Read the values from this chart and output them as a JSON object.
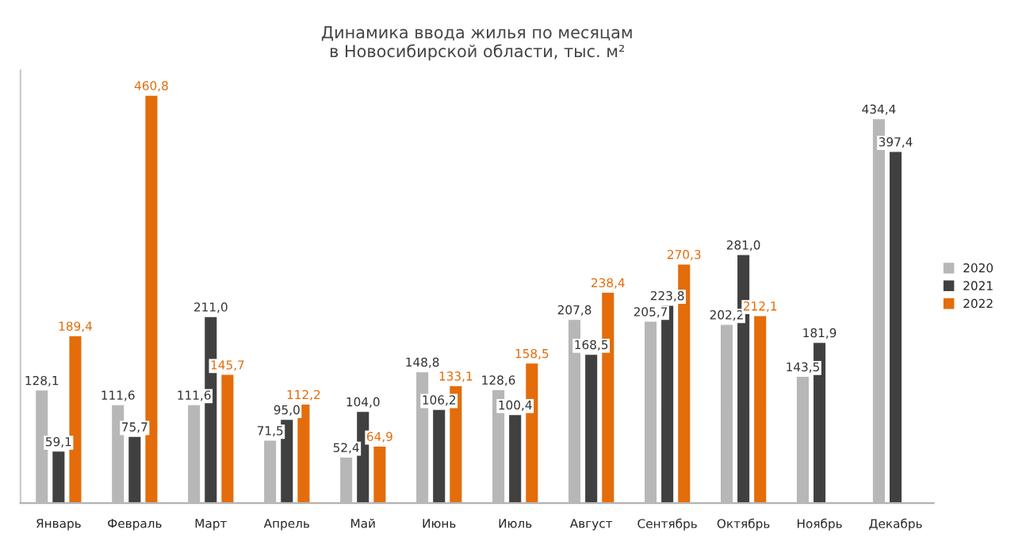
{
  "chart_data": {
    "type": "bar",
    "title": "Динамика ввода жилья по месяцам\nв Новосибирской области, тыс. м²",
    "categories": [
      "Январь",
      "Февраль",
      "Март",
      "Апрель",
      "Май",
      "Июнь",
      "Июль",
      "Август",
      "Сентябрь",
      "Октябрь",
      "Ноябрь",
      "Декабрь"
    ],
    "series": [
      {
        "name": "2020",
        "color": "#b7b7b7",
        "values": [
          128.1,
          111.6,
          111.6,
          71.5,
          52.4,
          148.8,
          128.6,
          207.8,
          205.7,
          202.2,
          143.5,
          434.4
        ],
        "value_labels": [
          "128,1",
          "111,6",
          "111,6",
          "71,5",
          "52,4",
          "148,8",
          "128,6",
          "207,8",
          "205,7",
          "202,2",
          "143,5",
          "434,4"
        ]
      },
      {
        "name": "2021",
        "color": "#404040",
        "values": [
          59.1,
          75.7,
          211.0,
          95.0,
          104.0,
          106.2,
          100.4,
          168.5,
          223.8,
          281.0,
          181.9,
          397.4
        ],
        "value_labels": [
          "59,1",
          "75,7",
          "211,0",
          "95,0",
          "104,0",
          "106,2",
          "100,4",
          "168,5",
          "223,8",
          "281,0",
          "181,9",
          "397,4"
        ]
      },
      {
        "name": "2022",
        "color": "#e46c0a",
        "values": [
          189.4,
          460.8,
          145.7,
          112.2,
          64.9,
          133.1,
          158.5,
          238.4,
          270.3,
          212.1,
          null,
          null
        ],
        "value_labels": [
          "189,4",
          "460,8",
          "145,7",
          "112,2",
          "64,9",
          "133,1",
          "158,5",
          "238,4",
          "270,3",
          "212,1",
          null,
          null
        ]
      }
    ],
    "legend": "right",
    "grid": false
  }
}
